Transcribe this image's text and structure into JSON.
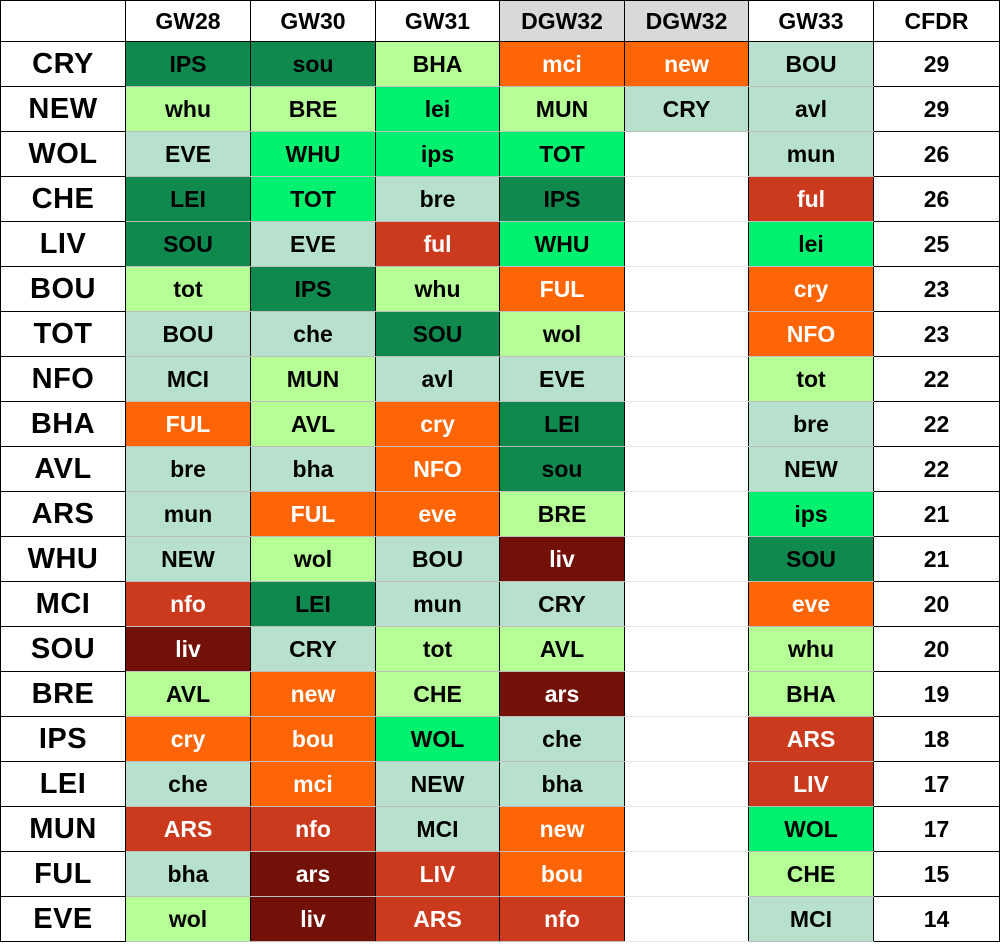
{
  "headers": [
    "",
    "GW28",
    "GW30",
    "GW31",
    "DGW32",
    "DGW32",
    "GW33",
    "CFDR"
  ],
  "colors": {
    "dg": "#10894f",
    "bg": "#00f070",
    "mg": "#3ee880",
    "lg": "#b6ff96",
    "pg": "#b7e1cd",
    "or": "#ff6504",
    "rd": "#cc3a1e",
    "dr": "#711107"
  },
  "rows": [
    {
      "team": "CRY",
      "cfdr": "29",
      "f": [
        [
          "IPS",
          "dg"
        ],
        [
          "sou",
          "dg"
        ],
        [
          "BHA",
          "lg"
        ],
        [
          "mci",
          "or"
        ],
        [
          "new",
          "or"
        ],
        [
          "BOU",
          "pg"
        ]
      ]
    },
    {
      "team": "NEW",
      "cfdr": "29",
      "f": [
        [
          "whu",
          "lg"
        ],
        [
          "BRE",
          "lg"
        ],
        [
          "lei",
          "bg"
        ],
        [
          "MUN",
          "lg"
        ],
        [
          "CRY",
          "pg"
        ],
        [
          "avl",
          "pg"
        ]
      ]
    },
    {
      "team": "WOL",
      "cfdr": "26",
      "f": [
        [
          "EVE",
          "pg"
        ],
        [
          "WHU",
          "bg"
        ],
        [
          "ips",
          "bg"
        ],
        [
          "TOT",
          "bg"
        ],
        [
          "",
          ""
        ],
        [
          "mun",
          "pg"
        ]
      ]
    },
    {
      "team": "CHE",
      "cfdr": "26",
      "f": [
        [
          "LEI",
          "dg"
        ],
        [
          "TOT",
          "bg"
        ],
        [
          "bre",
          "pg"
        ],
        [
          "IPS",
          "dg"
        ],
        [
          "",
          ""
        ],
        [
          "ful",
          "rd"
        ]
      ]
    },
    {
      "team": "LIV",
      "cfdr": "25",
      "f": [
        [
          "SOU",
          "dg"
        ],
        [
          "EVE",
          "pg"
        ],
        [
          "ful",
          "rd"
        ],
        [
          "WHU",
          "bg"
        ],
        [
          "",
          ""
        ],
        [
          "lei",
          "bg"
        ]
      ]
    },
    {
      "team": "BOU",
      "cfdr": "23",
      "f": [
        [
          "tot",
          "lg"
        ],
        [
          "IPS",
          "dg"
        ],
        [
          "whu",
          "lg"
        ],
        [
          "FUL",
          "or"
        ],
        [
          "",
          ""
        ],
        [
          "cry",
          "or"
        ]
      ]
    },
    {
      "team": "TOT",
      "cfdr": "23",
      "f": [
        [
          "BOU",
          "pg"
        ],
        [
          "che",
          "pg"
        ],
        [
          "SOU",
          "dg"
        ],
        [
          "wol",
          "lg"
        ],
        [
          "",
          ""
        ],
        [
          "NFO",
          "or"
        ]
      ]
    },
    {
      "team": "NFO",
      "cfdr": "22",
      "f": [
        [
          "MCI",
          "pg"
        ],
        [
          "MUN",
          "lg"
        ],
        [
          "avl",
          "pg"
        ],
        [
          "EVE",
          "pg"
        ],
        [
          "",
          ""
        ],
        [
          "tot",
          "lg"
        ]
      ]
    },
    {
      "team": "BHA",
      "cfdr": "22",
      "f": [
        [
          "FUL",
          "or"
        ],
        [
          "AVL",
          "lg"
        ],
        [
          "cry",
          "or"
        ],
        [
          "LEI",
          "dg"
        ],
        [
          "",
          ""
        ],
        [
          "bre",
          "pg"
        ]
      ]
    },
    {
      "team": "AVL",
      "cfdr": "22",
      "f": [
        [
          "bre",
          "pg"
        ],
        [
          "bha",
          "pg"
        ],
        [
          "NFO",
          "or"
        ],
        [
          "sou",
          "dg"
        ],
        [
          "",
          ""
        ],
        [
          "NEW",
          "pg"
        ]
      ]
    },
    {
      "team": "ARS",
      "cfdr": "21",
      "f": [
        [
          "mun",
          "pg"
        ],
        [
          "FUL",
          "or"
        ],
        [
          "eve",
          "or"
        ],
        [
          "BRE",
          "lg"
        ],
        [
          "",
          ""
        ],
        [
          "ips",
          "bg"
        ]
      ]
    },
    {
      "team": "WHU",
      "cfdr": "21",
      "f": [
        [
          "NEW",
          "pg"
        ],
        [
          "wol",
          "lg"
        ],
        [
          "BOU",
          "pg"
        ],
        [
          "liv",
          "dr"
        ],
        [
          "",
          ""
        ],
        [
          "SOU",
          "dg"
        ]
      ]
    },
    {
      "team": "MCI",
      "cfdr": "20",
      "f": [
        [
          "nfo",
          "rd"
        ],
        [
          "LEI",
          "dg"
        ],
        [
          "mun",
          "pg"
        ],
        [
          "CRY",
          "pg"
        ],
        [
          "",
          ""
        ],
        [
          "eve",
          "or"
        ]
      ]
    },
    {
      "team": "SOU",
      "cfdr": "20",
      "f": [
        [
          "liv",
          "dr"
        ],
        [
          "CRY",
          "pg"
        ],
        [
          "tot",
          "lg"
        ],
        [
          "AVL",
          "lg"
        ],
        [
          "",
          ""
        ],
        [
          "whu",
          "lg"
        ]
      ]
    },
    {
      "team": "BRE",
      "cfdr": "19",
      "f": [
        [
          "AVL",
          "lg"
        ],
        [
          "new",
          "or"
        ],
        [
          "CHE",
          "lg"
        ],
        [
          "ars",
          "dr"
        ],
        [
          "",
          ""
        ],
        [
          "BHA",
          "lg"
        ]
      ]
    },
    {
      "team": "IPS",
      "cfdr": "18",
      "f": [
        [
          "cry",
          "or"
        ],
        [
          "bou",
          "or"
        ],
        [
          "WOL",
          "bg"
        ],
        [
          "che",
          "pg"
        ],
        [
          "",
          ""
        ],
        [
          "ARS",
          "rd"
        ]
      ]
    },
    {
      "team": "LEI",
      "cfdr": "17",
      "f": [
        [
          "che",
          "pg"
        ],
        [
          "mci",
          "or"
        ],
        [
          "NEW",
          "pg"
        ],
        [
          "bha",
          "pg"
        ],
        [
          "",
          ""
        ],
        [
          "LIV",
          "rd"
        ]
      ]
    },
    {
      "team": "MUN",
      "cfdr": "17",
      "f": [
        [
          "ARS",
          "rd"
        ],
        [
          "nfo",
          "rd"
        ],
        [
          "MCI",
          "pg"
        ],
        [
          "new",
          "or"
        ],
        [
          "",
          ""
        ],
        [
          "WOL",
          "bg"
        ]
      ]
    },
    {
      "team": "FUL",
      "cfdr": "15",
      "f": [
        [
          "bha",
          "pg"
        ],
        [
          "ars",
          "dr"
        ],
        [
          "LIV",
          "rd"
        ],
        [
          "bou",
          "or"
        ],
        [
          "",
          ""
        ],
        [
          "CHE",
          "lg"
        ]
      ]
    },
    {
      "team": "EVE",
      "cfdr": "14",
      "f": [
        [
          "wol",
          "lg"
        ],
        [
          "liv",
          "dr"
        ],
        [
          "ARS",
          "rd"
        ],
        [
          "nfo",
          "rd"
        ],
        [
          "",
          ""
        ],
        [
          "MCI",
          "pg"
        ]
      ]
    }
  ]
}
